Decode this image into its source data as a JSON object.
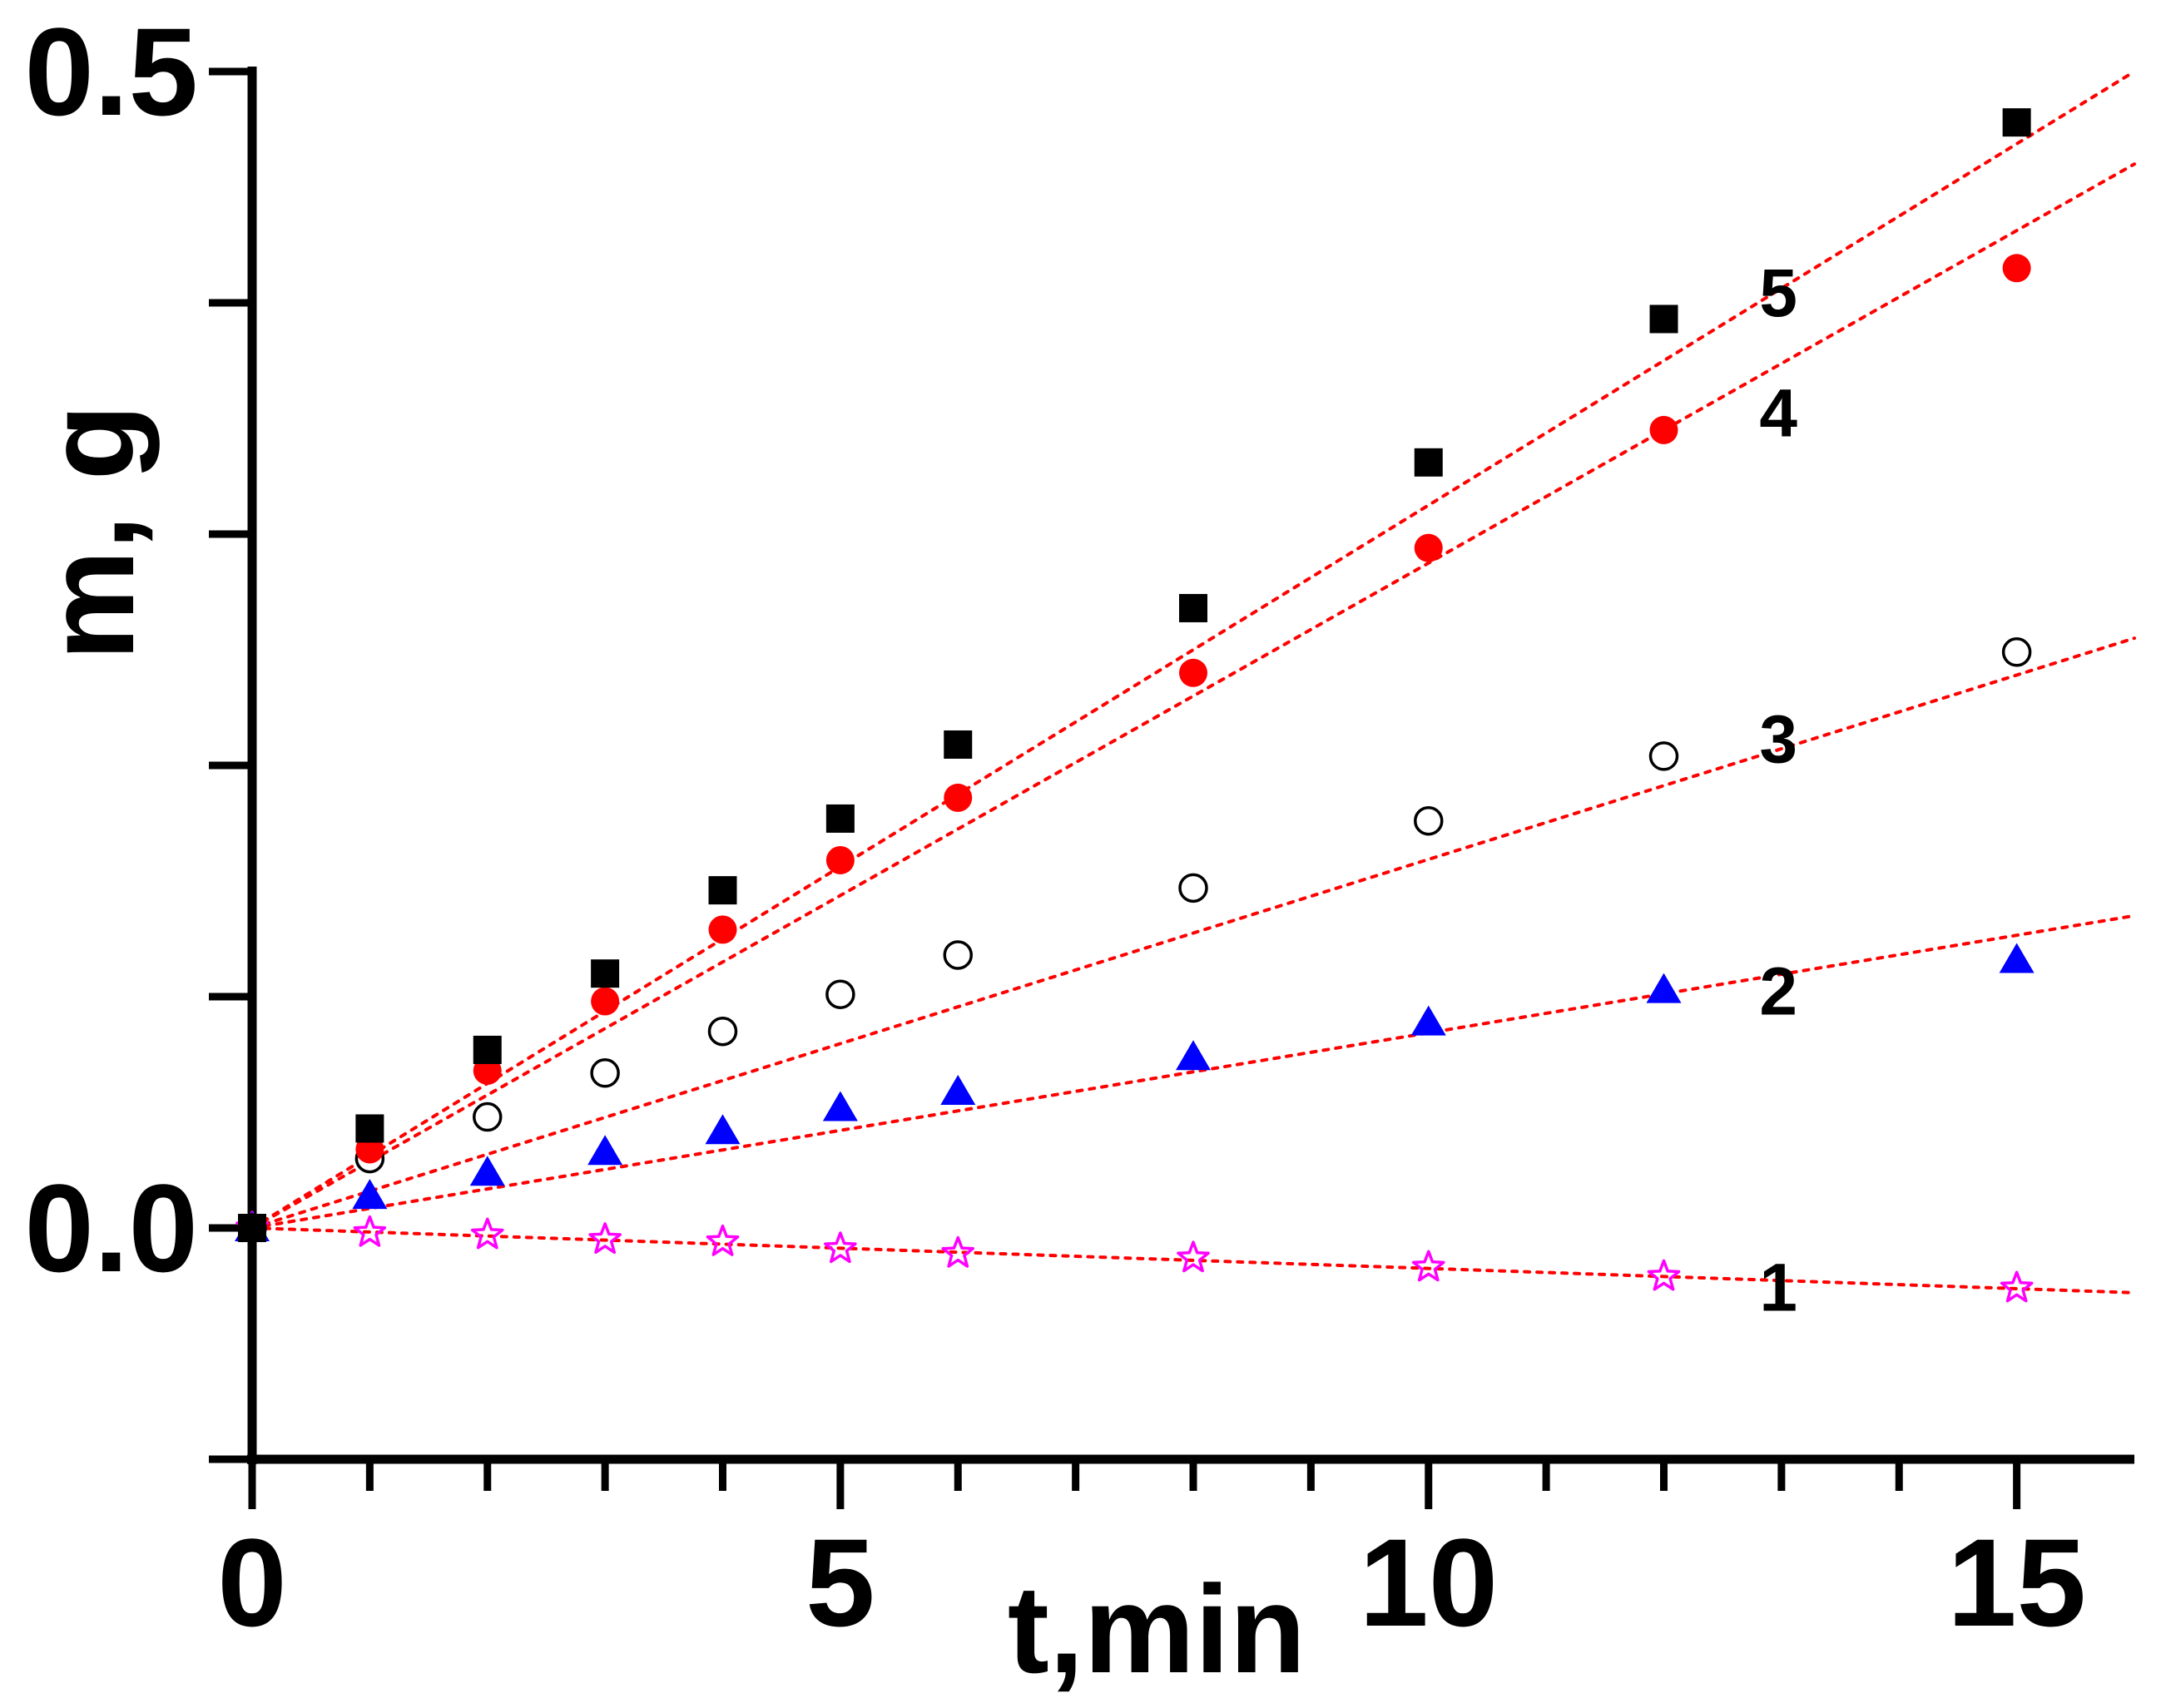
{
  "chart_data": {
    "type": "scatter",
    "title": "",
    "xlabel": "t,min",
    "ylabel": "m, g",
    "xlim": [
      0,
      16
    ],
    "ylim": [
      -0.1,
      0.5
    ],
    "x_major_ticks": [
      0,
      5,
      10,
      15
    ],
    "x_tick_labels": [
      "0",
      "5",
      "10",
      "15"
    ],
    "x_minor_ticks": [
      1,
      2,
      3,
      4,
      6,
      7,
      8,
      9,
      11,
      12,
      13,
      14
    ],
    "y_ticks": [
      -0.1,
      0.0,
      0.1,
      0.2,
      0.3,
      0.4,
      0.5
    ],
    "y_tick_labels": [
      {
        "value": 0.0,
        "text": "0.0"
      },
      {
        "value": 0.5,
        "text": "0.5"
      }
    ],
    "grid": false,
    "legend": "none",
    "fit_line_color": "#ff0000",
    "series": [
      {
        "name": "1",
        "label": "1",
        "marker": "star-open",
        "color": "#ff00ff",
        "x": [
          0,
          1,
          2,
          3,
          4,
          5,
          6,
          8,
          10,
          12,
          15
        ],
        "y": [
          0.0,
          -0.002,
          -0.003,
          -0.005,
          -0.006,
          -0.009,
          -0.011,
          -0.013,
          -0.017,
          -0.021,
          -0.026
        ],
        "fit": [
          0.0,
          -0.028
        ],
        "label_at": [
          12.6,
          -0.025
        ]
      },
      {
        "name": "2",
        "label": "2",
        "marker": "triangle",
        "color": "#0000ff",
        "x": [
          0,
          1,
          2,
          3,
          4,
          5,
          6,
          8,
          10,
          12,
          15
        ],
        "y": [
          0.0,
          0.014,
          0.024,
          0.033,
          0.042,
          0.052,
          0.059,
          0.074,
          0.089,
          0.103,
          0.116
        ],
        "fit": [
          0.0,
          0.135
        ],
        "label_at": [
          12.6,
          0.103
        ]
      },
      {
        "name": "3",
        "label": "3",
        "marker": "circle-open",
        "color": "#000000",
        "x": [
          0,
          1,
          2,
          3,
          4,
          5,
          6,
          8,
          10,
          12,
          15
        ],
        "y": [
          0.0,
          0.03,
          0.048,
          0.067,
          0.085,
          0.101,
          0.118,
          0.147,
          0.176,
          0.204,
          0.249
        ],
        "fit": [
          0.0,
          0.255
        ],
        "label_at": [
          12.6,
          0.212
        ]
      },
      {
        "name": "4",
        "label": "4",
        "marker": "circle",
        "color": "#ff0000",
        "x": [
          0,
          1,
          2,
          3,
          4,
          5,
          6,
          8,
          10,
          12,
          15
        ],
        "y": [
          0.0,
          0.034,
          0.068,
          0.098,
          0.129,
          0.159,
          0.186,
          0.24,
          0.294,
          0.345,
          0.415
        ],
        "fit": [
          0.0,
          0.46
        ],
        "label_at": [
          12.6,
          0.353
        ]
      },
      {
        "name": "5",
        "label": "5",
        "marker": "square",
        "color": "#000000",
        "x": [
          0,
          1,
          2,
          3,
          4,
          5,
          6,
          8,
          10,
          12,
          15
        ],
        "y": [
          0.0,
          0.043,
          0.077,
          0.11,
          0.146,
          0.177,
          0.209,
          0.268,
          0.331,
          0.393,
          0.478
        ],
        "fit": [
          0.0,
          0.5
        ],
        "label_at": [
          12.6,
          0.405
        ]
      }
    ]
  }
}
